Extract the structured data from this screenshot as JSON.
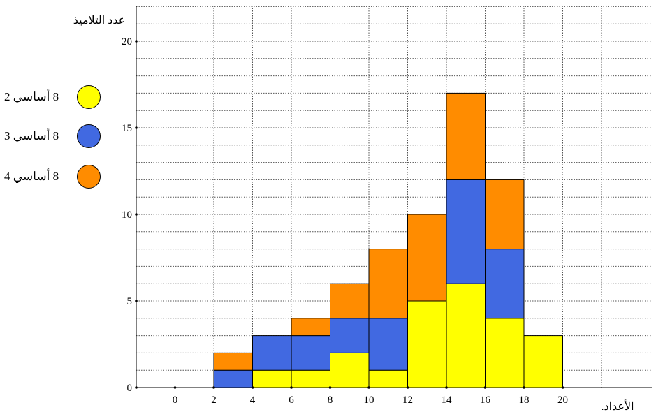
{
  "chart_data": {
    "type": "bar",
    "stacked": true,
    "title": "",
    "ylabel": "عدد التلاميذ",
    "xlabel": ".الأعداد",
    "x_ticks": [
      "0",
      "2",
      "4",
      "6",
      "8",
      "10",
      "12",
      "14",
      "16",
      "18",
      "20"
    ],
    "y_ticks": [
      "0",
      "5",
      "10",
      "15",
      "20"
    ],
    "xlim": [
      -2,
      22
    ],
    "ylim": [
      0,
      22
    ],
    "grid": true,
    "legend_position": "left",
    "bins": [
      [
        2,
        4
      ],
      [
        4,
        6
      ],
      [
        6,
        8
      ],
      [
        8,
        10
      ],
      [
        10,
        12
      ],
      [
        12,
        14
      ],
      [
        14,
        16
      ],
      [
        16,
        18
      ],
      [
        18,
        20
      ]
    ],
    "series": [
      {
        "name": "8 أساسي 2",
        "color": "#ffff00",
        "values": [
          0,
          1,
          1,
          2,
          1,
          5,
          6,
          4,
          3
        ]
      },
      {
        "name": "8 أساسي 3",
        "color": "#4169e1",
        "values": [
          1,
          2,
          2,
          2,
          3,
          0,
          6,
          4,
          0
        ]
      },
      {
        "name": "8 أساسي 4",
        "color": "#ff8c00",
        "values": [
          1,
          0,
          1,
          2,
          4,
          5,
          5,
          4,
          0
        ]
      }
    ]
  }
}
